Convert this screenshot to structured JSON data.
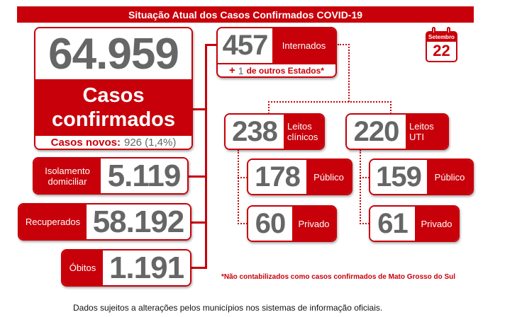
{
  "title": "Situação Atual dos Casos Confirmados COVID-19",
  "calendar": {
    "month": "Setembro",
    "day": "22"
  },
  "confirmed": {
    "value": "64.959",
    "label_line1": "Casos",
    "label_line2": "confirmados",
    "new_label": "Casos novos:",
    "new_value": "926 (1,4%)"
  },
  "isolation": {
    "label_line1": "Isolamento",
    "label_line2": "domiciliar",
    "value": "5.119"
  },
  "recovered": {
    "label": "Recuperados",
    "value": "58.192"
  },
  "deaths": {
    "label": "Óbitos",
    "value": "1.191"
  },
  "hospitalized": {
    "value": "457",
    "label": "Internados",
    "plus": "+",
    "other_value": "1",
    "other_label": "de outros Estados*"
  },
  "clinical": {
    "value": "238",
    "label_line1": "Leitos",
    "label_line2": "clínicos",
    "public": {
      "value": "178",
      "label": "Público"
    },
    "private": {
      "value": "60",
      "label": "Privado"
    }
  },
  "icu": {
    "value": "220",
    "label_line1": "Leitos",
    "label_line2": "UTI",
    "public": {
      "value": "159",
      "label": "Público"
    },
    "private": {
      "value": "61",
      "label": "Privado"
    }
  },
  "footnote": "*Não contabilizados como casos confirmados de Mato Grosso do Sul",
  "disclaimer": "Dados sujeitos a alterações pelos municípios nos sistemas de informação oficiais."
}
